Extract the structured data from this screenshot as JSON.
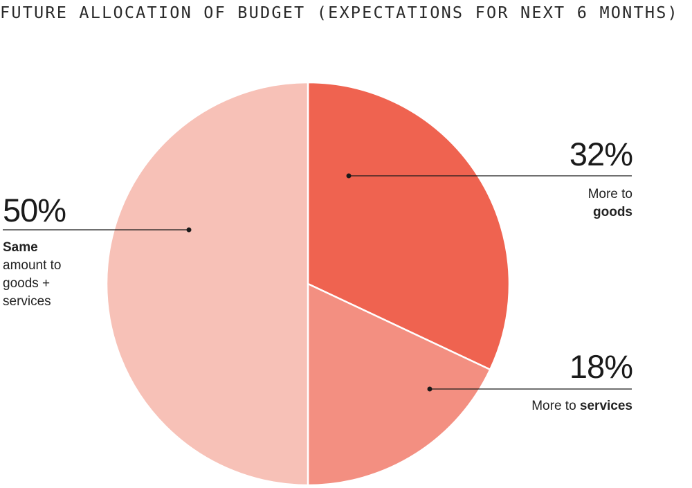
{
  "chart_data": {
    "type": "pie",
    "title": "FUTURE ALLOCATION OF BUDGET (EXPECTATIONS FOR NEXT 6 MONTHS)",
    "slices": [
      {
        "value": 32,
        "label": "32%",
        "desc_plain": "More to",
        "desc_bold": "goods",
        "color": "#ef6350"
      },
      {
        "value": 18,
        "label": "18%",
        "desc_plain": "More to",
        "desc_bold": "services",
        "color": "#f38f81"
      },
      {
        "value": 50,
        "label": "50%",
        "desc_bold": "Same",
        "desc_lines": [
          "amount to",
          "goods +",
          "services"
        ],
        "color": "#f7c1b7"
      }
    ]
  }
}
